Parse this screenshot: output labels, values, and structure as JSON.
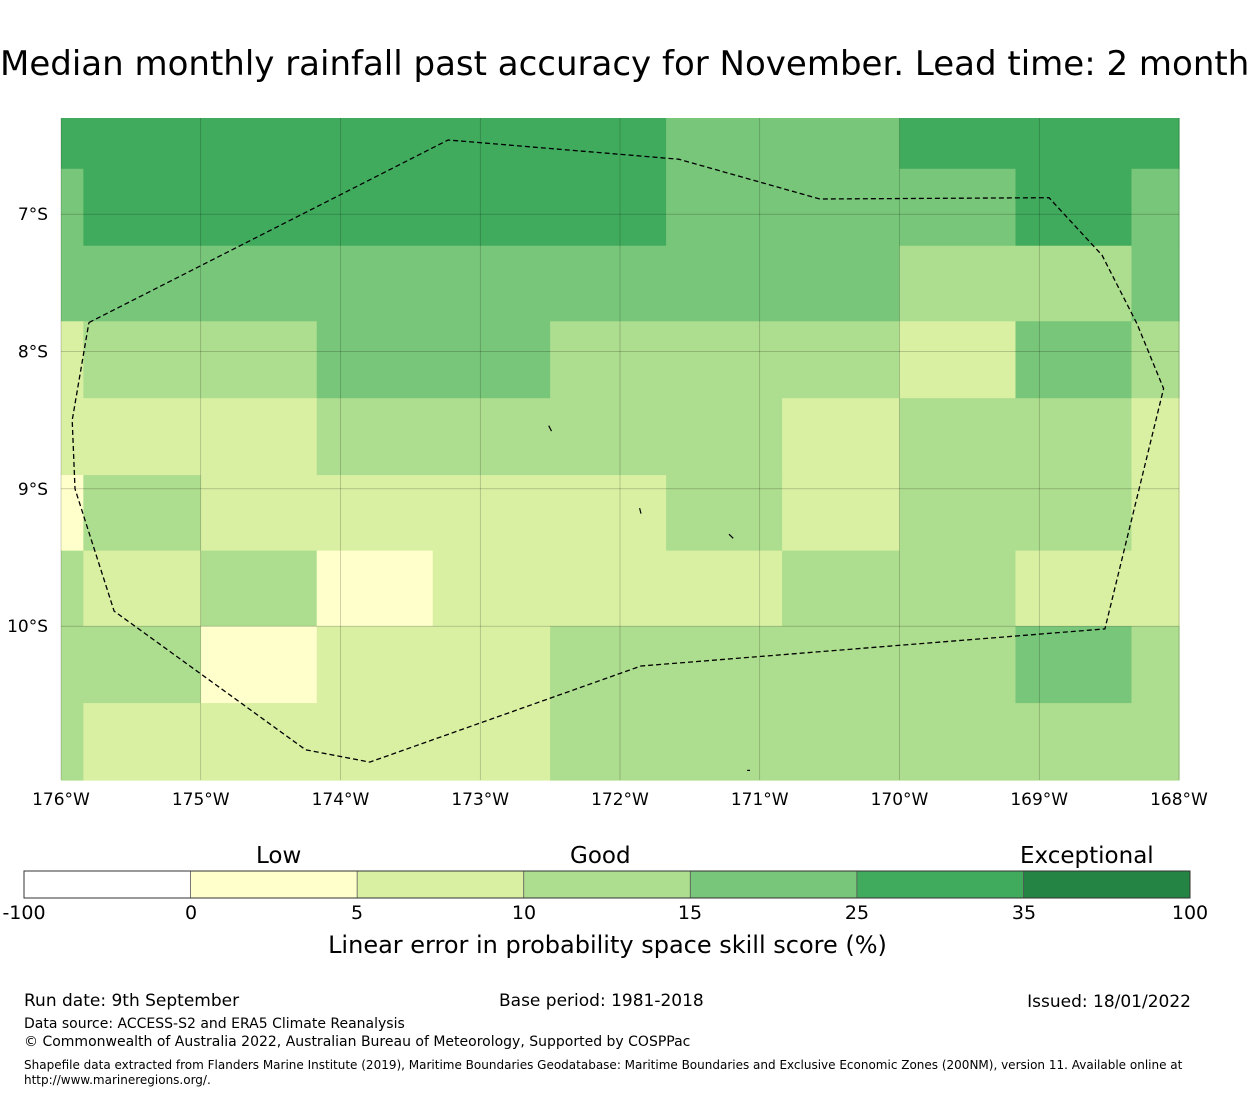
{
  "title": "Median monthly rainfall past accuracy for November. Lead time: 2 month",
  "map": {
    "lon_range": [
      -176.0,
      -168.0
    ],
    "lat_range": [
      -11.12,
      -6.3
    ],
    "x_ticks": [
      {
        "lon": -176,
        "label": "176°W"
      },
      {
        "lon": -175,
        "label": "175°W"
      },
      {
        "lon": -174,
        "label": "174°W"
      },
      {
        "lon": -173,
        "label": "173°W"
      },
      {
        "lon": -172,
        "label": "172°W"
      },
      {
        "lon": -171,
        "label": "171°W"
      },
      {
        "lon": -170,
        "label": "170°W"
      },
      {
        "lon": -169,
        "label": "169°W"
      },
      {
        "lon": -168,
        "label": "168°W"
      }
    ],
    "y_ticks": [
      {
        "lat": -7,
        "label": "7°S"
      },
      {
        "lat": -8,
        "label": "8°S"
      },
      {
        "lat": -9,
        "label": "9°S"
      },
      {
        "lat": -10,
        "label": "10°S"
      }
    ],
    "grid": true,
    "cells": [
      {
        "lon": [
          -176.0,
          -175.84
        ],
        "lat": [
          -6.3,
          -6.67
        ],
        "cat": 5
      },
      {
        "lon": [
          -175.84,
          -171.67
        ],
        "lat": [
          -6.3,
          -6.67
        ],
        "cat": 5
      },
      {
        "lon": [
          -171.67,
          -170.0
        ],
        "lat": [
          -6.3,
          -6.67
        ],
        "cat": 4
      },
      {
        "lon": [
          -170.0,
          -168.0
        ],
        "lat": [
          -6.3,
          -6.67
        ],
        "cat": 5
      },
      {
        "lon": [
          -176.0,
          -175.84
        ],
        "lat": [
          -6.67,
          -7.23
        ],
        "cat": 4
      },
      {
        "lon": [
          -175.84,
          -171.67
        ],
        "lat": [
          -6.67,
          -7.23
        ],
        "cat": 5
      },
      {
        "lon": [
          -171.67,
          -170.0
        ],
        "lat": [
          -6.67,
          -7.23
        ],
        "cat": 4
      },
      {
        "lon": [
          -170.0,
          -169.17
        ],
        "lat": [
          -6.67,
          -7.23
        ],
        "cat": 4
      },
      {
        "lon": [
          -169.17,
          -168.34
        ],
        "lat": [
          -6.67,
          -7.23
        ],
        "cat": 5
      },
      {
        "lon": [
          -168.34,
          -168.0
        ],
        "lat": [
          -6.67,
          -7.23
        ],
        "cat": 4
      },
      {
        "lon": [
          -176.0,
          -170.0
        ],
        "lat": [
          -7.23,
          -7.78
        ],
        "cat": 4
      },
      {
        "lon": [
          -170.0,
          -168.34
        ],
        "lat": [
          -7.23,
          -7.78
        ],
        "cat": 3
      },
      {
        "lon": [
          -168.34,
          -168.0
        ],
        "lat": [
          -7.23,
          -7.78
        ],
        "cat": 4
      },
      {
        "lon": [
          -176.0,
          -175.84
        ],
        "lat": [
          -7.78,
          -8.34
        ],
        "cat": 2
      },
      {
        "lon": [
          -175.84,
          -174.17
        ],
        "lat": [
          -7.78,
          -8.34
        ],
        "cat": 3
      },
      {
        "lon": [
          -174.17,
          -172.5
        ],
        "lat": [
          -7.78,
          -8.34
        ],
        "cat": 4
      },
      {
        "lon": [
          -172.5,
          -170.0
        ],
        "lat": [
          -7.78,
          -8.34
        ],
        "cat": 3
      },
      {
        "lon": [
          -170.0,
          -169.17
        ],
        "lat": [
          -7.78,
          -8.34
        ],
        "cat": 2
      },
      {
        "lon": [
          -169.17,
          -168.34
        ],
        "lat": [
          -7.78,
          -8.34
        ],
        "cat": 4
      },
      {
        "lon": [
          -168.34,
          -168.0
        ],
        "lat": [
          -7.78,
          -8.34
        ],
        "cat": 3
      },
      {
        "lon": [
          -176.0,
          -174.17
        ],
        "lat": [
          -8.34,
          -8.9
        ],
        "cat": 2
      },
      {
        "lon": [
          -174.17,
          -170.84
        ],
        "lat": [
          -8.34,
          -8.9
        ],
        "cat": 3
      },
      {
        "lon": [
          -170.84,
          -170.0
        ],
        "lat": [
          -8.34,
          -8.9
        ],
        "cat": 2
      },
      {
        "lon": [
          -170.0,
          -168.34
        ],
        "lat": [
          -8.34,
          -8.9
        ],
        "cat": 3
      },
      {
        "lon": [
          -168.34,
          -168.0
        ],
        "lat": [
          -8.34,
          -8.9
        ],
        "cat": 2
      },
      {
        "lon": [
          -176.0,
          -175.84
        ],
        "lat": [
          -8.9,
          -9.45
        ],
        "cat": 1
      },
      {
        "lon": [
          -175.84,
          -175.0
        ],
        "lat": [
          -8.9,
          -9.45
        ],
        "cat": 3
      },
      {
        "lon": [
          -175.0,
          -171.67
        ],
        "lat": [
          -8.9,
          -9.45
        ],
        "cat": 2
      },
      {
        "lon": [
          -171.67,
          -170.84
        ],
        "lat": [
          -8.9,
          -9.45
        ],
        "cat": 3
      },
      {
        "lon": [
          -170.84,
          -170.0
        ],
        "lat": [
          -8.9,
          -9.45
        ],
        "cat": 2
      },
      {
        "lon": [
          -170.0,
          -168.34
        ],
        "lat": [
          -8.9,
          -9.45
        ],
        "cat": 3
      },
      {
        "lon": [
          -168.34,
          -168.0
        ],
        "lat": [
          -8.9,
          -9.45
        ],
        "cat": 2
      },
      {
        "lon": [
          -176.0,
          -175.84
        ],
        "lat": [
          -9.45,
          -10.0
        ],
        "cat": 3
      },
      {
        "lon": [
          -175.84,
          -175.0
        ],
        "lat": [
          -9.45,
          -10.0
        ],
        "cat": 2
      },
      {
        "lon": [
          -175.0,
          -174.17
        ],
        "lat": [
          -9.45,
          -10.0
        ],
        "cat": 3
      },
      {
        "lon": [
          -174.17,
          -173.34
        ],
        "lat": [
          -9.45,
          -10.0
        ],
        "cat": 1
      },
      {
        "lon": [
          -173.34,
          -170.84
        ],
        "lat": [
          -9.45,
          -10.0
        ],
        "cat": 2
      },
      {
        "lon": [
          -170.84,
          -169.17
        ],
        "lat": [
          -9.45,
          -10.0
        ],
        "cat": 3
      },
      {
        "lon": [
          -169.17,
          -168.0
        ],
        "lat": [
          -9.45,
          -10.0
        ],
        "cat": 2
      },
      {
        "lon": [
          -176.0,
          -175.0
        ],
        "lat": [
          -10.0,
          -10.56
        ],
        "cat": 3
      },
      {
        "lon": [
          -175.0,
          -174.17
        ],
        "lat": [
          -10.0,
          -10.56
        ],
        "cat": 1
      },
      {
        "lon": [
          -174.17,
          -172.5
        ],
        "lat": [
          -10.0,
          -10.56
        ],
        "cat": 2
      },
      {
        "lon": [
          -172.5,
          -169.17
        ],
        "lat": [
          -10.0,
          -10.56
        ],
        "cat": 3
      },
      {
        "lon": [
          -169.17,
          -168.34
        ],
        "lat": [
          -10.0,
          -10.56
        ],
        "cat": 4
      },
      {
        "lon": [
          -168.34,
          -168.0
        ],
        "lat": [
          -10.0,
          -10.56
        ],
        "cat": 3
      },
      {
        "lon": [
          -176.0,
          -175.84
        ],
        "lat": [
          -10.56,
          -11.12
        ],
        "cat": 3
      },
      {
        "lon": [
          -175.84,
          -172.5
        ],
        "lat": [
          -10.56,
          -11.12
        ],
        "cat": 2
      },
      {
        "lon": [
          -172.5,
          -168.0
        ],
        "lat": [
          -10.56,
          -11.12
        ],
        "cat": 3
      }
    ],
    "boundary": [
      [
        -175.8,
        -7.79
      ],
      [
        -173.23,
        -6.46
      ],
      [
        -171.58,
        -6.6
      ],
      [
        -170.57,
        -6.89
      ],
      [
        -168.93,
        -6.88
      ],
      [
        -168.55,
        -7.3
      ],
      [
        -168.3,
        -7.8
      ],
      [
        -168.11,
        -8.27
      ],
      [
        -168.53,
        -10.02
      ],
      [
        -171.85,
        -10.29
      ],
      [
        -173.79,
        -10.99
      ],
      [
        -174.25,
        -10.9
      ],
      [
        -175.62,
        -9.89
      ],
      [
        -175.9,
        -9.0
      ],
      [
        -175.92,
        -8.5
      ],
      [
        -175.8,
        -7.79
      ]
    ],
    "islands": [
      {
        "points": [
          [
            -172.51,
            -8.54
          ],
          [
            -172.49,
            -8.58
          ]
        ]
      },
      {
        "points": [
          [
            -171.86,
            -9.14
          ],
          [
            -171.85,
            -9.18
          ]
        ]
      },
      {
        "points": [
          [
            -171.22,
            -9.33
          ],
          [
            -171.19,
            -9.36
          ]
        ]
      },
      {
        "points": [
          [
            -171.09,
            -11.05
          ],
          [
            -171.07,
            -11.05
          ]
        ]
      }
    ]
  },
  "colorbar": {
    "colors": [
      "#ffffff",
      "#ffffcc",
      "#d9f0a3",
      "#addd8e",
      "#78c679",
      "#41ab5d",
      "#238443"
    ],
    "ticks": [
      "-100",
      "0",
      "5",
      "10",
      "15",
      "25",
      "35",
      "100"
    ],
    "category_labels": {
      "low": "Low",
      "good": "Good",
      "exceptional": "Exceptional"
    },
    "title": "Linear error in probability space skill score (%)"
  },
  "footer": {
    "run_date": "Run date: 9th September",
    "base_period": "Base period: 1981-2018",
    "issued": "Issued: 18/01/2022",
    "data_source": "Data source: ACCESS-S2 and ERA5 Climate Reanalysis",
    "copyright": "© Commonwealth of Australia 2022, Australian Bureau of Meteorology, Supported by COSPPac",
    "shapefile_note": "Shapefile data extracted from Flanders Marine Institute (2019), Maritime Boundaries Geodatabase: Maritime Boundaries and Exclusive Economic Zones (200NM), version 11. Available online at http://www.marineregions.org/."
  }
}
